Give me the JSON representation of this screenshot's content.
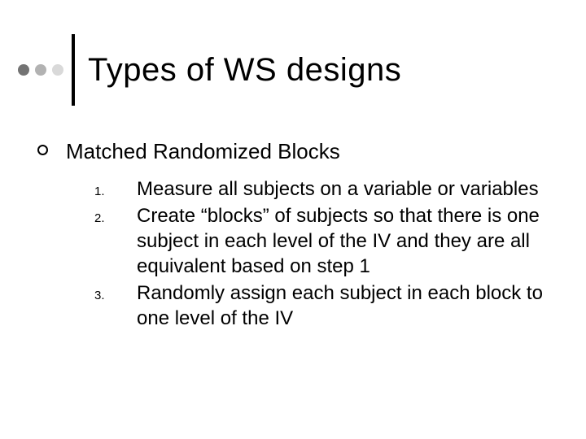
{
  "slide": {
    "title": "Types of WS designs",
    "title_fontsize": 40,
    "dot_colors": [
      "#737373",
      "#b2b2b2",
      "#d9d9d9"
    ],
    "vbar_color": "#000000",
    "background_color": "#ffffff",
    "text_color": "#000000",
    "bullet": {
      "text": "Matched Randomized Blocks",
      "fontsize": 26
    },
    "numbered": {
      "label_fontsize": 15,
      "text_fontsize": 24,
      "items": [
        {
          "n": "1.",
          "text": "Measure all subjects on a variable or variables"
        },
        {
          "n": "2.",
          "text": "Create “blocks” of subjects so that there is one subject in each level of the IV and they are all equivalent based on step 1"
        },
        {
          "n": "3.",
          "text": "Randomly assign each subject in each block to one level of the IV"
        }
      ]
    }
  }
}
